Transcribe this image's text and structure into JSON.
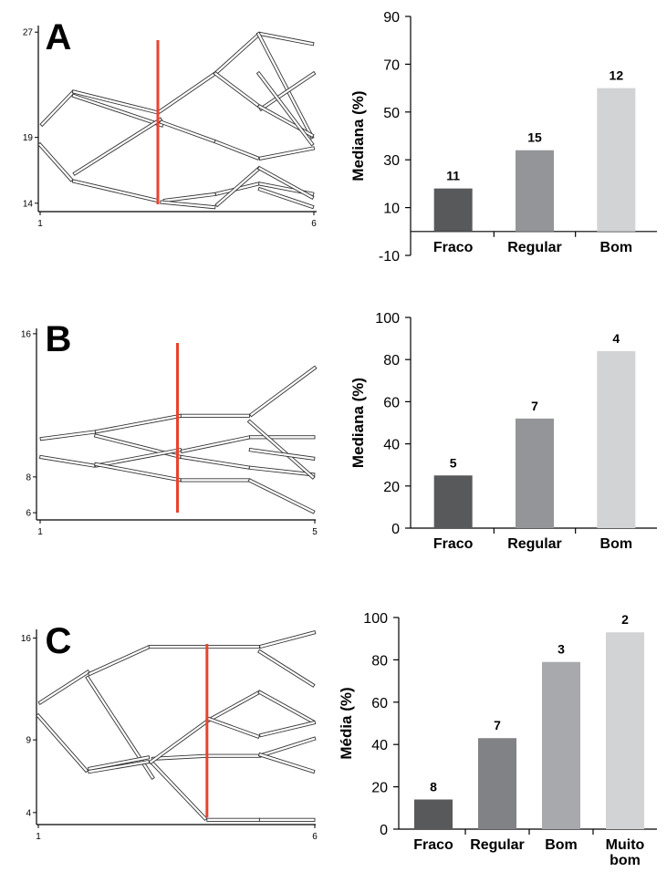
{
  "panels": [
    {
      "label": "A"
    },
    {
      "label": "B"
    },
    {
      "label": "C"
    }
  ],
  "chart_data": [
    {
      "type": "line",
      "panel": "A",
      "subtype": "parallel-bundle",
      "x_ticks": [
        "1",
        "6"
      ],
      "y_ticks": [
        "27",
        "19",
        "14"
      ],
      "ylim": [
        13.5,
        27.5
      ],
      "xlim": [
        1,
        6
      ],
      "marker_line_x": 3.15,
      "marker_color": "#e8442b"
    },
    {
      "type": "bar",
      "panel": "A",
      "categories": [
        "Fraco",
        "Regular",
        "Bom"
      ],
      "values": [
        18,
        34,
        60
      ],
      "data_labels": [
        "11",
        "15",
        "12"
      ],
      "ylabel": "Mediana (%)",
      "ylim": [
        -10,
        90
      ],
      "yticks": [
        -10,
        10,
        30,
        50,
        70,
        90
      ],
      "colors": [
        "#58595b",
        "#939598",
        "#d1d3d4"
      ]
    },
    {
      "type": "line",
      "panel": "B",
      "subtype": "parallel-bundle",
      "x_ticks": [
        "1",
        "5"
      ],
      "y_ticks": [
        "16",
        "8",
        "6"
      ],
      "ylim": [
        5.7,
        16.3
      ],
      "xlim": [
        1,
        5
      ],
      "marker_line_x": 3.0,
      "marker_color": "#e8442b"
    },
    {
      "type": "bar",
      "panel": "B",
      "categories": [
        "Fraco",
        "Regular",
        "Bom"
      ],
      "values": [
        25,
        52,
        84
      ],
      "data_labels": [
        "5",
        "7",
        "4"
      ],
      "ylabel": "Mediana (%)",
      "ylim": [
        0,
        100
      ],
      "yticks": [
        0,
        20,
        40,
        60,
        80,
        100
      ],
      "colors": [
        "#58595b",
        "#939598",
        "#d1d3d4"
      ]
    },
    {
      "type": "line",
      "panel": "C",
      "subtype": "parallel-bundle",
      "x_ticks": [
        "1",
        "6"
      ],
      "y_ticks": [
        "16",
        "9",
        "4"
      ],
      "ylim": [
        3.3,
        16.6
      ],
      "xlim": [
        1,
        6
      ],
      "marker_line_x": 4.05,
      "marker_color": "#e8442b"
    },
    {
      "type": "bar",
      "panel": "C",
      "categories": [
        "Fraco",
        "Regular",
        "Bom",
        "Muito bom"
      ],
      "category_lines": [
        [
          "Fraco"
        ],
        [
          "Regular"
        ],
        [
          "Bom"
        ],
        [
          "Muito",
          "bom"
        ]
      ],
      "values": [
        14,
        43,
        79,
        93
      ],
      "data_labels": [
        "8",
        "7",
        "3",
        "2"
      ],
      "ylabel": "Média (%)",
      "ylim": [
        0,
        100
      ],
      "yticks": [
        0,
        20,
        40,
        60,
        80,
        100
      ],
      "colors": [
        "#58595b",
        "#808285",
        "#a7a9ac",
        "#d1d3d4"
      ]
    }
  ]
}
